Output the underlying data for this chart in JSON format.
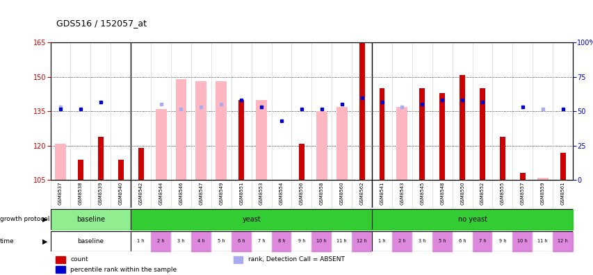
{
  "title": "GDS516 / 152057_at",
  "samples": [
    "GSM8537",
    "GSM8538",
    "GSM8539",
    "GSM8540",
    "GSM8542",
    "GSM8544",
    "GSM8546",
    "GSM8547",
    "GSM8549",
    "GSM8551",
    "GSM8553",
    "GSM8554",
    "GSM8556",
    "GSM8558",
    "GSM8560",
    "GSM8562",
    "GSM8541",
    "GSM8543",
    "GSM8545",
    "GSM8548",
    "GSM8550",
    "GSM8552",
    "GSM8555",
    "GSM8557",
    "GSM8559",
    "GSM8561"
  ],
  "count_values": [
    null,
    114,
    124,
    114,
    119,
    null,
    null,
    null,
    null,
    140,
    null,
    105,
    121,
    null,
    null,
    165,
    145,
    null,
    145,
    143,
    151,
    145,
    124,
    108,
    null,
    117
  ],
  "absent_bar_values": [
    121,
    null,
    null,
    null,
    null,
    136,
    149,
    148,
    148,
    null,
    140,
    null,
    null,
    135,
    137,
    null,
    null,
    137,
    null,
    null,
    null,
    null,
    null,
    null,
    106,
    null
  ],
  "percentile_values": [
    136,
    136,
    139,
    null,
    null,
    null,
    null,
    null,
    null,
    140,
    137,
    131,
    136,
    136,
    138,
    141,
    139,
    null,
    138,
    140,
    140,
    139,
    null,
    137,
    null,
    136
  ],
  "absent_rank_values": [
    137,
    null,
    null,
    null,
    null,
    138,
    136,
    137,
    138,
    null,
    null,
    null,
    null,
    null,
    null,
    null,
    null,
    137,
    null,
    null,
    null,
    null,
    null,
    null,
    136,
    null
  ],
  "time_labels_yeast": [
    "1 h",
    "2 h",
    "3 h",
    "4 h",
    "5 h",
    "6 h",
    "7 h",
    "8 h",
    "9 h",
    "10 h",
    "11 h",
    "12 h"
  ],
  "time_labels_noyeast": [
    "1 h",
    "2 h",
    "3 h",
    "5 h",
    "6 h",
    "7 h",
    "9 h",
    "10 h",
    "11 h",
    "12 h"
  ],
  "ylim_left": [
    105,
    165
  ],
  "ylim_right": [
    0,
    100
  ],
  "yticks_left": [
    105,
    120,
    135,
    150,
    165
  ],
  "yticks_right": [
    0,
    25,
    50,
    75,
    100
  ],
  "ytick_right_labels": [
    "0",
    "25",
    "50",
    "75",
    "100%"
  ],
  "hgrid_lines": [
    120,
    135,
    150
  ],
  "color_red": "#cc0000",
  "color_pink": "#ffb6c1",
  "color_blue": "#0000cc",
  "color_lightblue": "#aaaaee",
  "color_green_light": "#90ee90",
  "color_green_dark": "#33cc33",
  "color_purple": "#dd88dd",
  "color_white": "#ffffff",
  "color_gray": "#cccccc",
  "baseline_count": 4,
  "yeast_count": 12,
  "noyeast_count": 10
}
